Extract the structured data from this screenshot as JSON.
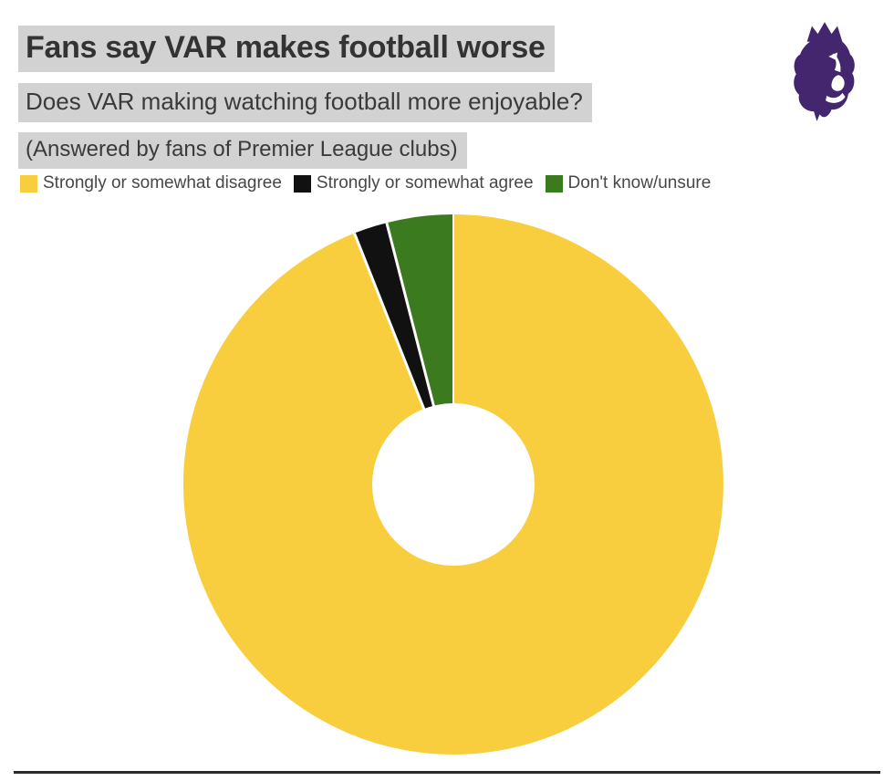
{
  "header": {
    "title": "Fans say VAR makes football worse",
    "subtitle": "Does VAR making watching football more enjoyable?",
    "note": "(Answered by fans of Premier League clubs)"
  },
  "logo": {
    "name": "premier-league-lion",
    "color": "#44266F"
  },
  "chart_data": {
    "type": "pie",
    "subtype": "donut",
    "title": "Fans say VAR makes football worse",
    "categories": [
      "Strongly or somewhat disagree",
      "Strongly or somewhat agree",
      "Don't know/unsure"
    ],
    "values": [
      94,
      2,
      4
    ],
    "unit": "percent",
    "colors": [
      "#F9CE3E",
      "#111111",
      "#3B7A1E"
    ],
    "start_angle_deg": 0,
    "direction": "clockwise",
    "donut_hole_ratio": 0.3,
    "separator_color": "#FFFFFF",
    "legend_position": "top",
    "data_labels_shown": false
  },
  "style": {
    "highlight_bg": "#D2D2D2",
    "title_color": "#333333",
    "text_color": "#3A3A3A",
    "legend_text_color": "#474747",
    "rule_color": "#2B2B2B"
  }
}
